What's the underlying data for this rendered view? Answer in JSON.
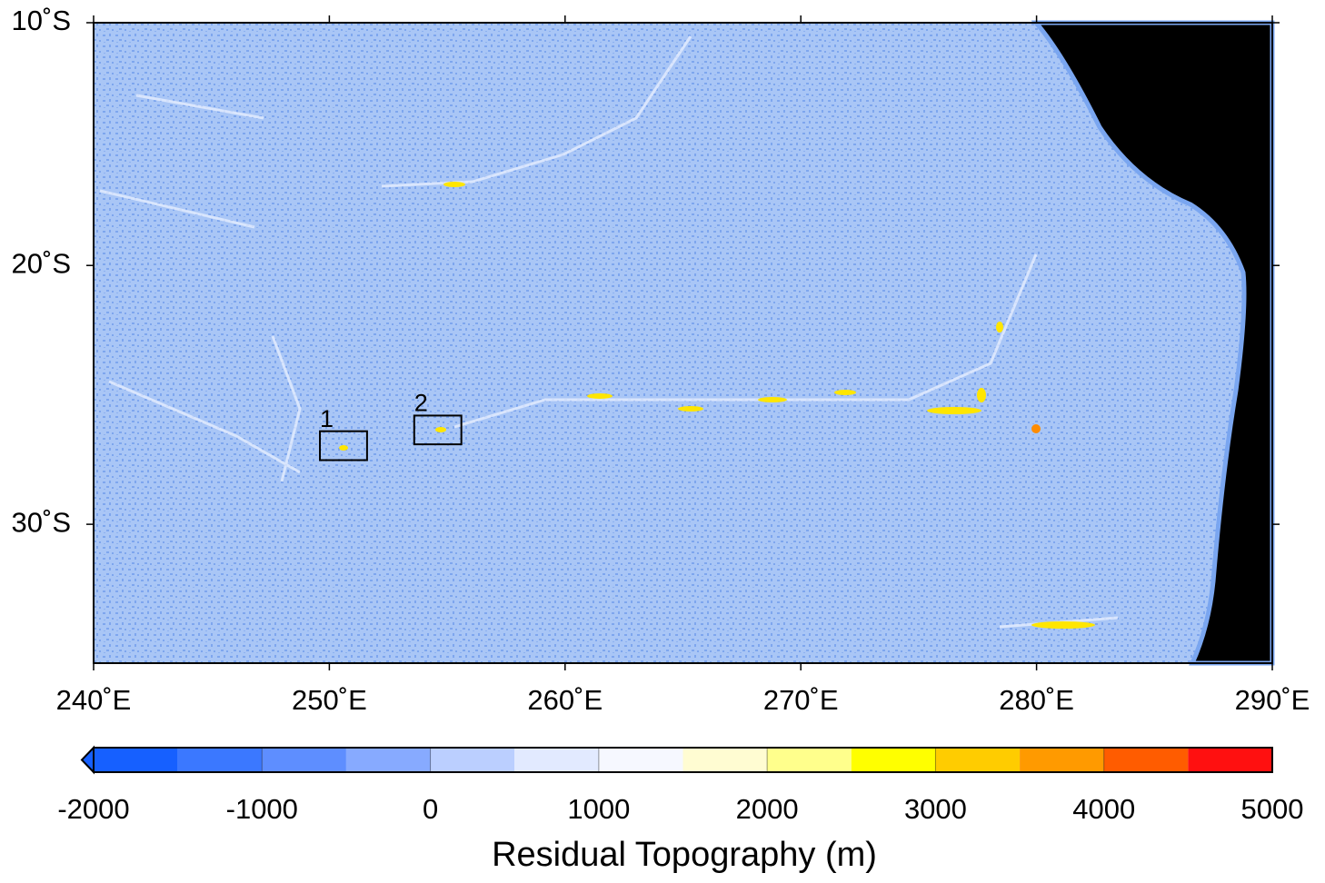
{
  "map": {
    "projection": "mercator",
    "xlim": [
      240,
      290
    ],
    "ylim": [
      -35,
      -10
    ],
    "xticks": [
      {
        "value": 240,
        "label": "240˚E"
      },
      {
        "value": 250,
        "label": "250˚E"
      },
      {
        "value": 260,
        "label": "260˚E"
      },
      {
        "value": 270,
        "label": "270˚E"
      },
      {
        "value": 280,
        "label": "280˚E"
      },
      {
        "value": 290,
        "label": "290˚E"
      }
    ],
    "yticks": [
      {
        "value": -10,
        "label": "10˚S"
      },
      {
        "value": -20,
        "label": "20˚S"
      },
      {
        "value": -30,
        "label": "30˚S"
      }
    ],
    "boxes": [
      {
        "label": "1",
        "lon": [
          249.6,
          251.6
        ],
        "lat": [
          -26.5,
          -27.6
        ]
      },
      {
        "label": "2",
        "lon": [
          253.6,
          255.6
        ],
        "lat": [
          -25.9,
          -27.0
        ]
      }
    ]
  },
  "colorbar": {
    "label": "Residual Topography (m)",
    "bounds": [
      -2000,
      -1500,
      -1000,
      -500,
      0,
      500,
      1000,
      1500,
      2000,
      2500,
      3000,
      3500,
      4000,
      4500,
      5000
    ],
    "colors": [
      "#1660ff",
      "#3b78ff",
      "#5e8eff",
      "#87aaff",
      "#bbcfff",
      "#e2eaff",
      "#f6f8ff",
      "#fffcd2",
      "#ffff8c",
      "#ffff00",
      "#ffcc00",
      "#ff9a00",
      "#ff5c00",
      "#ff1010"
    ],
    "ticks": [
      -2000,
      -1000,
      0,
      1000,
      2000,
      3000,
      4000,
      5000
    ]
  }
}
